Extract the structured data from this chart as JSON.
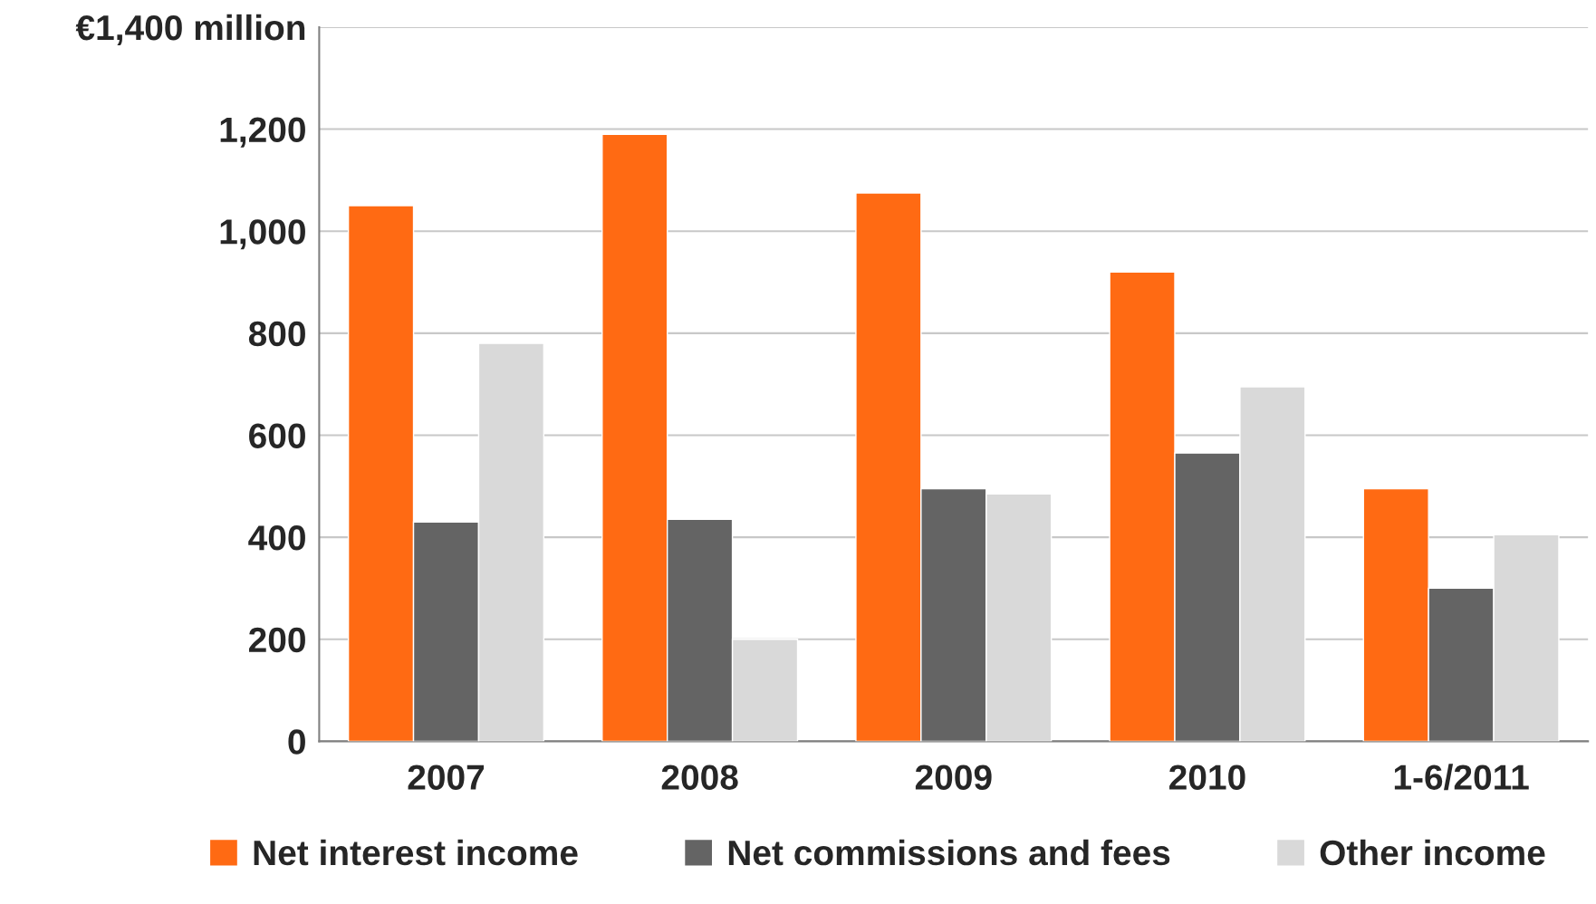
{
  "chart_data": {
    "type": "bar",
    "categories": [
      "2007",
      "2008",
      "2009",
      "2010",
      "1-6/2011"
    ],
    "series": [
      {
        "name": "Net interest income",
        "color": "#ff6a13",
        "values": [
          1050,
          1190,
          1075,
          920,
          495
        ]
      },
      {
        "name": "Net commissions and fees",
        "color": "#646464",
        "values": [
          430,
          435,
          495,
          565,
          300
        ]
      },
      {
        "name": "Other income",
        "color": "#d9d9d9",
        "values": [
          780,
          200,
          485,
          695,
          405
        ]
      }
    ],
    "ylim": [
      0,
      1400
    ],
    "yticks": [
      0,
      200,
      400,
      600,
      800,
      {
        "value": 1000,
        "label": "1,000"
      },
      {
        "value": 1200,
        "label": "1,200"
      },
      {
        "value": 1400,
        "label": "€1,400 million"
      }
    ],
    "grid": "y",
    "legend": "bottom"
  }
}
